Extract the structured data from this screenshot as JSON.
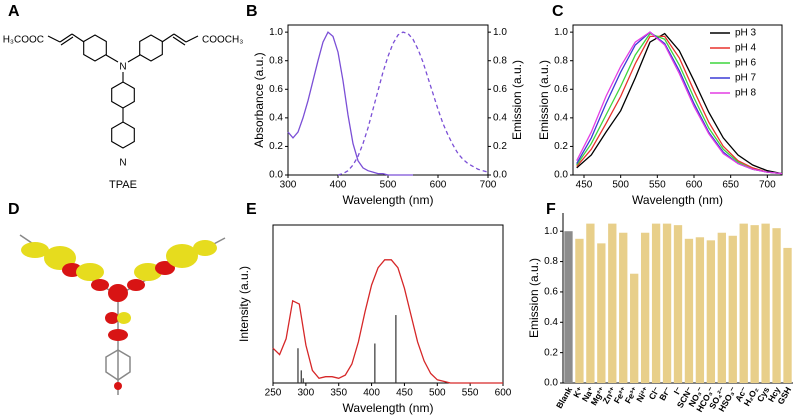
{
  "panel_labels": [
    "A",
    "B",
    "C",
    "D",
    "E",
    "F"
  ],
  "structure": {
    "name": "TPAE",
    "atoms": [
      "H₃COOC",
      "COOCH₃",
      "N",
      "N"
    ]
  },
  "chart_data": [
    {
      "type": "line",
      "xlabel": "Wavelength (nm)",
      "ylabel": "Absorbance (a.u.)",
      "y2label": "Emission (a.u.)",
      "xlim": [
        300,
        700
      ],
      "xticks": [
        300,
        400,
        500,
        600,
        700
      ],
      "ylim": [
        0,
        1.05
      ],
      "yticks": [
        {
          "value": 0,
          "label": "0.0"
        },
        0.2,
        0.4,
        0.6,
        0.8,
        {
          "value": 1,
          "label": "1.0"
        }
      ],
      "y2lim": [
        0,
        1.05
      ],
      "y2ticks": [
        {
          "value": 0,
          "label": "0.0"
        },
        0.2,
        0.4,
        0.6,
        0.8,
        {
          "value": 1,
          "label": "1.0"
        }
      ],
      "x": [
        300,
        310,
        320,
        330,
        340,
        350,
        360,
        370,
        380,
        390,
        400,
        410,
        420,
        430,
        440,
        450,
        460,
        470,
        480,
        490,
        500,
        510,
        520,
        530,
        540,
        550,
        560,
        570,
        580,
        590,
        600,
        610,
        620,
        630,
        640,
        650,
        660,
        670,
        680,
        690,
        700
      ],
      "series": [
        {
          "color": "#7b4fd6",
          "values": [
            0.3,
            0.26,
            0.3,
            0.4,
            0.52,
            0.66,
            0.8,
            0.93,
            1.0,
            0.97,
            0.86,
            0.66,
            0.42,
            0.22,
            0.1,
            0.05,
            0.03,
            0.02,
            0.01,
            0.01,
            0,
            0,
            0,
            0,
            0,
            0,
            null,
            null,
            null,
            null,
            null,
            null,
            null,
            null,
            null,
            null,
            null,
            null,
            null,
            null,
            null
          ]
        },
        {
          "color": "#7b4fd6",
          "dash": true,
          "axis": "y2",
          "values": [
            null,
            null,
            null,
            null,
            null,
            null,
            null,
            null,
            null,
            null,
            0,
            0.01,
            0.03,
            0.07,
            0.13,
            0.22,
            0.33,
            0.46,
            0.59,
            0.72,
            0.83,
            0.92,
            0.98,
            1.0,
            0.99,
            0.95,
            0.88,
            0.79,
            0.68,
            0.57,
            0.46,
            0.36,
            0.28,
            0.21,
            0.15,
            0.11,
            0.08,
            0.06,
            0.04,
            0.03,
            0.02
          ]
        }
      ]
    },
    {
      "type": "line",
      "xlabel": "Wavelength (nm)",
      "ylabel": "Emission (a.u.)",
      "legend": "upper right",
      "xlim": [
        435,
        720
      ],
      "xticks": [
        450,
        500,
        550,
        600,
        650,
        700
      ],
      "ylim": [
        0,
        1.05
      ],
      "yticks": [
        {
          "value": 0,
          "label": "0.0"
        },
        0.2,
        0.4,
        0.6,
        0.8,
        {
          "value": 1,
          "label": "1.0"
        }
      ],
      "x": [
        440,
        460,
        480,
        500,
        520,
        540,
        560,
        580,
        600,
        620,
        640,
        660,
        680,
        700,
        720
      ],
      "series": [
        {
          "name": "pH 3",
          "color": "#000000",
          "values": [
            0.05,
            0.14,
            0.3,
            0.45,
            0.68,
            0.93,
            0.99,
            0.87,
            0.66,
            0.44,
            0.26,
            0.14,
            0.07,
            0.03,
            0.01
          ]
        },
        {
          "name": "pH 4",
          "color": "#e8322d",
          "values": [
            0.06,
            0.18,
            0.36,
            0.55,
            0.78,
            0.97,
            0.97,
            0.82,
            0.59,
            0.37,
            0.2,
            0.1,
            0.05,
            0.02,
            0.01
          ]
        },
        {
          "name": "pH 6",
          "color": "#3dd63d",
          "values": [
            0.07,
            0.22,
            0.42,
            0.62,
            0.84,
            0.99,
            0.95,
            0.77,
            0.54,
            0.33,
            0.18,
            0.09,
            0.04,
            0.02,
            0.01
          ]
        },
        {
          "name": "pH 7",
          "color": "#3b3bd6",
          "values": [
            0.08,
            0.26,
            0.5,
            0.72,
            0.91,
            1.0,
            0.92,
            0.73,
            0.5,
            0.3,
            0.16,
            0.08,
            0.04,
            0.02,
            0.01
          ]
        },
        {
          "name": "pH 8",
          "color": "#e43de4",
          "values": [
            0.1,
            0.3,
            0.55,
            0.76,
            0.93,
            1.0,
            0.91,
            0.71,
            0.48,
            0.29,
            0.15,
            0.08,
            0.04,
            0.02,
            0.01
          ]
        }
      ]
    },
    {
      "type": "line",
      "xlabel": "Wavelength (nm)",
      "ylabel": "Intensity (a.u.)",
      "xlim": [
        250,
        600
      ],
      "xticks": [
        250,
        300,
        350,
        400,
        450,
        500,
        550,
        600
      ],
      "ylim": [
        0,
        1
      ],
      "x": [
        250,
        260,
        270,
        280,
        290,
        300,
        310,
        320,
        330,
        340,
        350,
        360,
        370,
        380,
        390,
        400,
        410,
        420,
        430,
        440,
        450,
        460,
        470,
        480,
        490,
        500,
        510,
        520,
        530,
        540,
        550,
        560,
        570,
        580,
        590,
        600
      ],
      "series": [
        {
          "color": "#d62728",
          "values": [
            0.22,
            0.18,
            0.28,
            0.52,
            0.5,
            0.24,
            0.08,
            0.03,
            0.04,
            0.04,
            0.03,
            0.05,
            0.12,
            0.26,
            0.45,
            0.62,
            0.73,
            0.78,
            0.78,
            0.73,
            0.6,
            0.43,
            0.26,
            0.14,
            0.06,
            0.02,
            0.01,
            0,
            0,
            0,
            0,
            0,
            0,
            0,
            0,
            0
          ]
        }
      ],
      "sticks": {
        "color": "#333333",
        "x": [
          288,
          293,
          296,
          405,
          437
        ],
        "values": [
          0.22,
          0.08,
          0.03,
          0.25,
          0.43
        ]
      }
    },
    {
      "type": "bar",
      "ylabel": "Emission (a.u.)",
      "ylim": [
        0,
        1.12
      ],
      "yticks": [
        {
          "value": 0,
          "label": "0.0"
        },
        0.2,
        0.4,
        0.6,
        0.8,
        {
          "value": 1,
          "label": "1.0"
        }
      ],
      "categories": [
        "Blank",
        "K⁺",
        "Na⁺",
        "Mg²⁺",
        "Zn²⁺",
        "Fe²⁺",
        "Fe³⁺",
        "Ni²⁺",
        "Cl⁻",
        "Br⁻",
        "I⁻",
        "SCN⁻",
        "NO₃⁻",
        "HCO₃⁻",
        "SO₄²⁻",
        "HSO₃⁻",
        "Ac⁻",
        "H₂O₂",
        "Cys",
        "Hcy",
        "GSH"
      ],
      "values": [
        1.0,
        0.95,
        1.05,
        0.92,
        1.05,
        0.99,
        0.72,
        0.99,
        1.05,
        1.05,
        1.04,
        0.95,
        0.96,
        0.94,
        0.99,
        0.97,
        1.05,
        1.04,
        1.05,
        1.02,
        0.89
      ],
      "colors": [
        "#8c8c8c",
        "#e8cf8a",
        "#e8cf8a",
        "#e8cf8a",
        "#e8cf8a",
        "#e8cf8a",
        "#e8cf8a",
        "#e8cf8a",
        "#e8cf8a",
        "#e8cf8a",
        "#e8cf8a",
        "#e8cf8a",
        "#e8cf8a",
        "#e8cf8a",
        "#e8cf8a",
        "#e8cf8a",
        "#e8cf8a",
        "#e8cf8a",
        "#e8cf8a",
        "#e8cf8a",
        "#e8cf8a"
      ]
    }
  ]
}
